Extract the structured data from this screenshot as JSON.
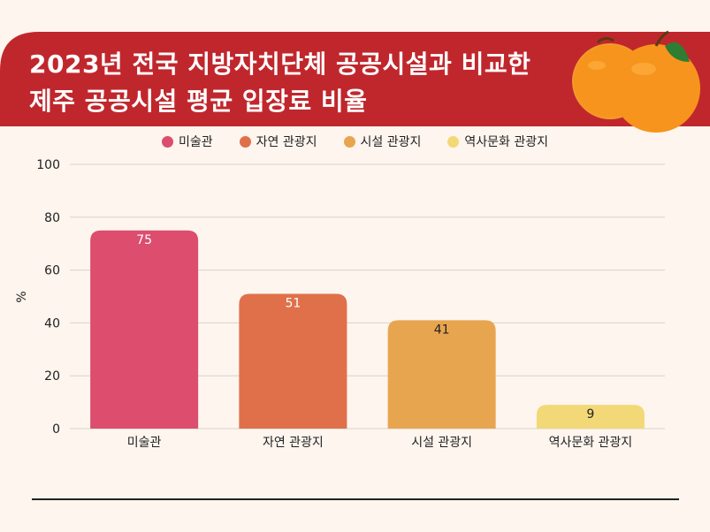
{
  "header": {
    "title_line1": "2023년 전국 지방자치단체 공공시설과 비교한",
    "title_line2": "제주 공공시설 평균 입장료 비율",
    "banner_color": "#c0272d",
    "illustration": "tangerines"
  },
  "chart_data": {
    "type": "bar",
    "categories": [
      "미술관",
      "자연 관광지",
      "시설 관광지",
      "역사문화 관광지"
    ],
    "values": [
      75,
      51,
      41,
      9
    ],
    "colors": [
      "#dc4d6e",
      "#e0704a",
      "#e8a550",
      "#f3d877"
    ],
    "label_colors": [
      "#ffffff",
      "#ffffff",
      "#222222",
      "#222222"
    ],
    "ylabel": "%",
    "ylim": [
      0,
      100
    ],
    "yticks": [
      0,
      20,
      40,
      60,
      80,
      100
    ],
    "grid": true,
    "legend_position": "top"
  }
}
